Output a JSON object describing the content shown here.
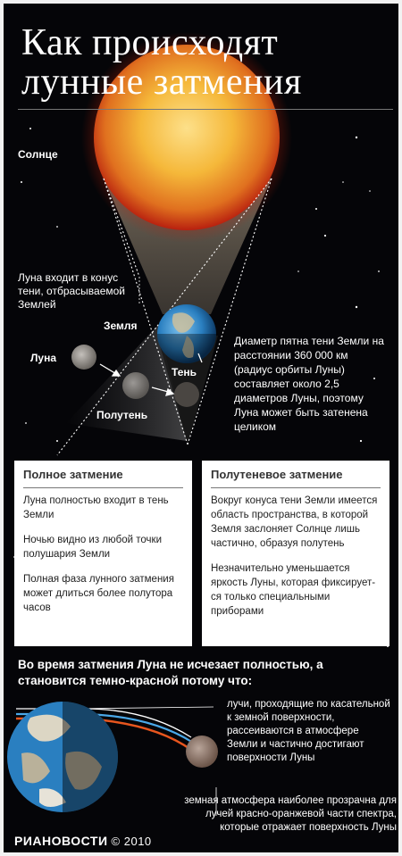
{
  "title_line1": "Как происходят",
  "title_line2": "лунные затмения",
  "labels": {
    "sun": "Солнце",
    "moon_enters": "Луна входит в конус тени, отбрасываемой Землей",
    "earth": "Земля",
    "moon": "Луна",
    "umbra": "Тень",
    "penumbra": "Полутень",
    "diameter_note": "Диаметр пятна тени Земли на расстоянии 360 000 км (радиус орбиты Луны) составляет около 2,5 диаметров Луны, поэтому Луна может быть затенена целиком"
  },
  "total": {
    "heading": "Полное затмение",
    "p1": "Луна  полностью входит в тень Земли",
    "p2": "Ночью видно из любой точки полушария Земли",
    "p3": "Полная фаза лунного затмения может длиться более полутора часов"
  },
  "penumbral": {
    "heading": "Полутеневое затмение",
    "p1": "Вокруг конуса тени Земли имеется область пространства, в которой Земля заслоняет Солнце лишь частично, образуя полутень",
    "p2": "Незначительно уменьшается яркость Луны, которая фиксирует-ся только специальными приборами"
  },
  "reason_heading": "Во время затмения Луна не исчезает полностью, а становится темно-красной потому что:",
  "reason_rays": "лучи, проходящие по касательной к земной поверхности, рассеиваются в атмосфере Земли и частично достигают поверхности Луны",
  "reason_atmosphere": "земная атмосфера наиболее прозрачна для лучей красно-оранжевой части спектра, которые отражает поверхность Луны",
  "logo": "РИАНОВОСТИ",
  "copyright": "© 2010",
  "colors": {
    "background": "#050508",
    "sun_core": "#f5b83a",
    "sun_edge": "#d8441a",
    "earth_ocean": "#2a7fc0",
    "moon": "#8a8580",
    "red_ray": "#e8561e",
    "blue_ray": "#4aa8e8"
  }
}
